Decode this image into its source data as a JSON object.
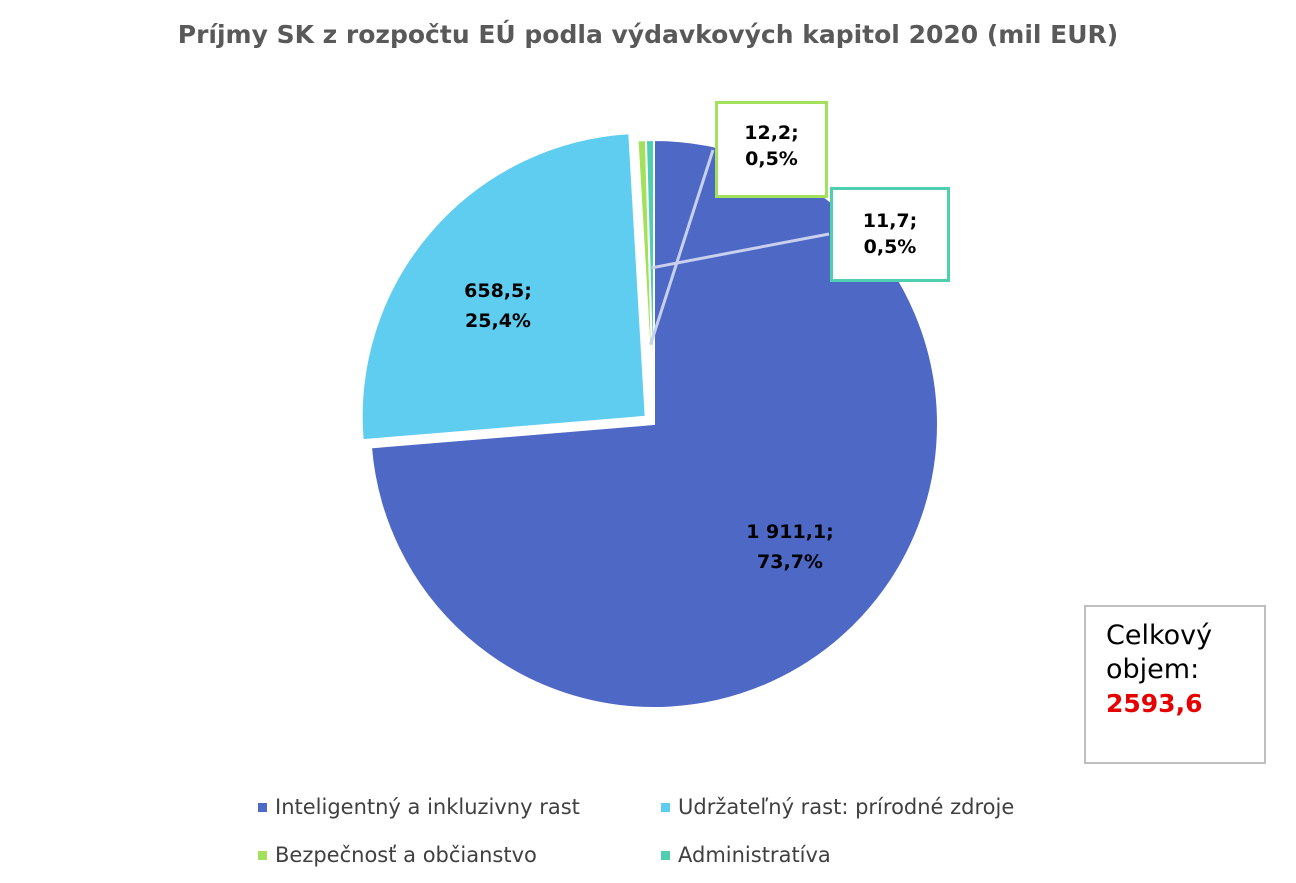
{
  "chart_data": {
    "type": "pie",
    "title": "Príjmy SK z rozpočtu EÚ podla výdavkových kapitol 2020 (mil EUR)",
    "slices": [
      {
        "name": "Inteligentný a inkluzivny rast",
        "value": 1911.1,
        "percent": 73.7,
        "color": "#4e68c6",
        "label_value": "1 911,1;",
        "label_percent": "73,7%"
      },
      {
        "name": "Udržateľný rast: prírodné zdroje",
        "value": 658.5,
        "percent": 25.4,
        "color": "#5fcdf0",
        "label_value": "658,5;",
        "label_percent": "25,4%"
      },
      {
        "name": "Bezpečnosť a občianstvo",
        "value": 12.2,
        "percent": 0.5,
        "color": "#a3e05b",
        "label_value": "12,2;",
        "label_percent": "0,5%"
      },
      {
        "name": "Administratíva",
        "value": 11.7,
        "percent": 0.5,
        "color": "#4fcfb0",
        "label_value": "11,7;",
        "label_percent": "0,5%"
      }
    ],
    "legend_placement": "bottom"
  },
  "total": {
    "label_line1": "Celkový",
    "label_line2": "objem:",
    "value": "2593,6",
    "value_color": "#e60000"
  }
}
